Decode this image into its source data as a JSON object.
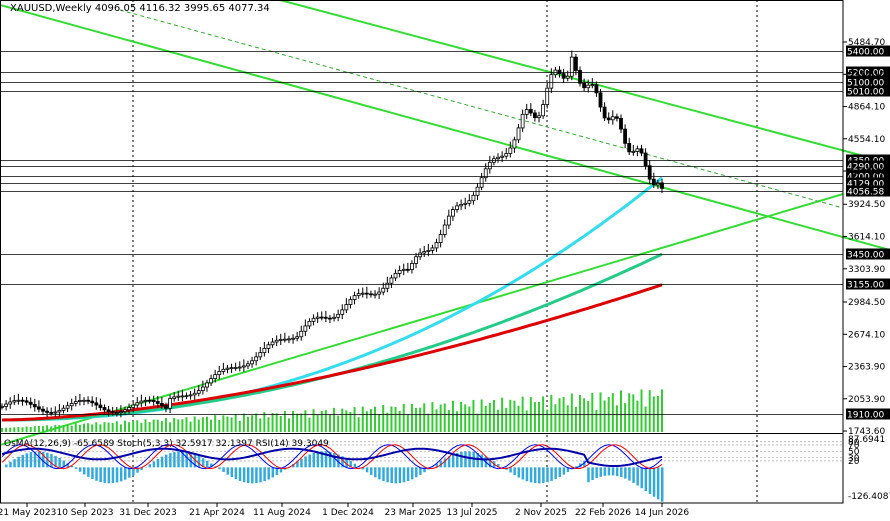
{
  "chart_data": [
    {
      "type": "candlestick",
      "symbol": "XAUUSD",
      "timeframe": "Weekly",
      "header": "XAUUSD,Weekly  4096.05 4116.32 3995.65 4077.34",
      "ohlc": {
        "open": 4096.05,
        "high": 4116.32,
        "low": 3995.65,
        "close": 4077.34
      },
      "ylim": [
        1650,
        5900
      ],
      "y_ticks": [
        "5484.70",
        "5174.10",
        "4864.10",
        "4554.10",
        "4244.10",
        "3924.50",
        "3614.10",
        "3303.90",
        "2984.50",
        "2674.10",
        "2363.90",
        "2053.90",
        "1743.60"
      ],
      "x_ticks": [
        "21 May 2023",
        "10 Sep 2023",
        "31 Dec 2023",
        "21 Apr 2024",
        "11 Aug 2024",
        "1 Dec 2024",
        "23 Mar 2025",
        "13 Jul 2025",
        "2 Nov 2025",
        "22 Feb 2026",
        "14 Jun 2026"
      ],
      "price_levels": [
        {
          "label": "5400.00",
          "value": 5400
        },
        {
          "label": "5200.00",
          "value": 5200
        },
        {
          "label": "5100.00",
          "value": 5100
        },
        {
          "label": "5010.00",
          "value": 5010
        },
        {
          "label": "4350.00",
          "value": 4350
        },
        {
          "label": "4290.00",
          "value": 4290
        },
        {
          "label": "4200.00",
          "value": 4200
        },
        {
          "label": "4129.00",
          "value": 4129
        },
        {
          "label": "4056.58",
          "value": 4056.58
        },
        {
          "label": "3450.00",
          "value": 3450
        },
        {
          "label": "3155.00",
          "value": 3155
        },
        {
          "label": "1910.00",
          "value": 1910
        }
      ],
      "moving_averages": [
        {
          "color": "#33ddee",
          "last": 4180
        },
        {
          "color": "#22cc88",
          "last": 3445
        },
        {
          "color": "#dd0000",
          "last": 3150
        }
      ]
    },
    {
      "type": "indicator",
      "header": "OsMA(12,26,9) -65.6589 Stoch(5,3,3) 32.5917 32.1397 RSI(14) 39.3049",
      "y_ticks": [
        "87.6941",
        "80",
        "70",
        "50",
        "30",
        "20",
        "-126.4087"
      ],
      "osma": -65.6589,
      "stoch_main": 32.5917,
      "stoch_signal": 32.1397,
      "rsi": 39.3049
    }
  ],
  "colors": {
    "bull": "#ffffff",
    "bear": "#000000",
    "channel": "#33dd33",
    "grid": "#000000",
    "level_label_bg": "#000000",
    "osma": "#33aadd",
    "volume": "#33cc33",
    "stoch_main": "#0000ff",
    "stoch_signal": "#ff0000",
    "rsi": "#0000aa"
  }
}
